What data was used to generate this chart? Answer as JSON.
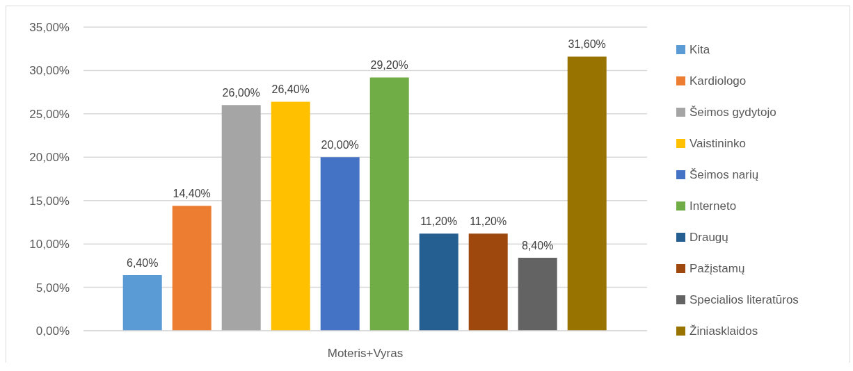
{
  "chart_data": {
    "type": "bar",
    "categories": [
      "Moteris+Vyras"
    ],
    "series": [
      {
        "name": "Kita",
        "color": "#5b9bd5",
        "values": [
          6.4
        ],
        "value_labels": [
          "6,40%"
        ]
      },
      {
        "name": "Kardiologo",
        "color": "#ed7d31",
        "values": [
          14.4
        ],
        "value_labels": [
          "14,40%"
        ]
      },
      {
        "name": "Šeimos gydytojo",
        "color": "#a5a5a5",
        "values": [
          26.0
        ],
        "value_labels": [
          "26,00%"
        ]
      },
      {
        "name": "Vaistininko",
        "color": "#ffc000",
        "values": [
          26.4
        ],
        "value_labels": [
          "26,40%"
        ]
      },
      {
        "name": "Šeimos narių",
        "color": "#4472c4",
        "values": [
          20.0
        ],
        "value_labels": [
          "20,00%"
        ]
      },
      {
        "name": "Interneto",
        "color": "#70ad47",
        "values": [
          29.2
        ],
        "value_labels": [
          "29,20%"
        ]
      },
      {
        "name": "Draugų",
        "color": "#255e91",
        "values": [
          11.2
        ],
        "value_labels": [
          "11,20%"
        ]
      },
      {
        "name": "Pažįstamų",
        "color": "#9e480e",
        "values": [
          11.2
        ],
        "value_labels": [
          "11,20%"
        ]
      },
      {
        "name": "Specialios literatūros",
        "color": "#636363",
        "values": [
          8.4
        ],
        "value_labels": [
          "8,40%"
        ]
      },
      {
        "name": "Žiniasklaidos",
        "color": "#997300",
        "values": [
          31.6
        ],
        "value_labels": [
          "31,60%"
        ]
      }
    ],
    "ylim": [
      0,
      35
    ],
    "yticks": [
      {
        "value": 0,
        "label": "0,00%"
      },
      {
        "value": 5,
        "label": "5,00%"
      },
      {
        "value": 10,
        "label": "10,00%"
      },
      {
        "value": 15,
        "label": "15,00%"
      },
      {
        "value": 20,
        "label": "20,00%"
      },
      {
        "value": 25,
        "label": "25,00%"
      },
      {
        "value": 30,
        "label": "30,00%"
      },
      {
        "value": 35,
        "label": "35,00%"
      }
    ],
    "grid": "y",
    "legend": "right"
  }
}
